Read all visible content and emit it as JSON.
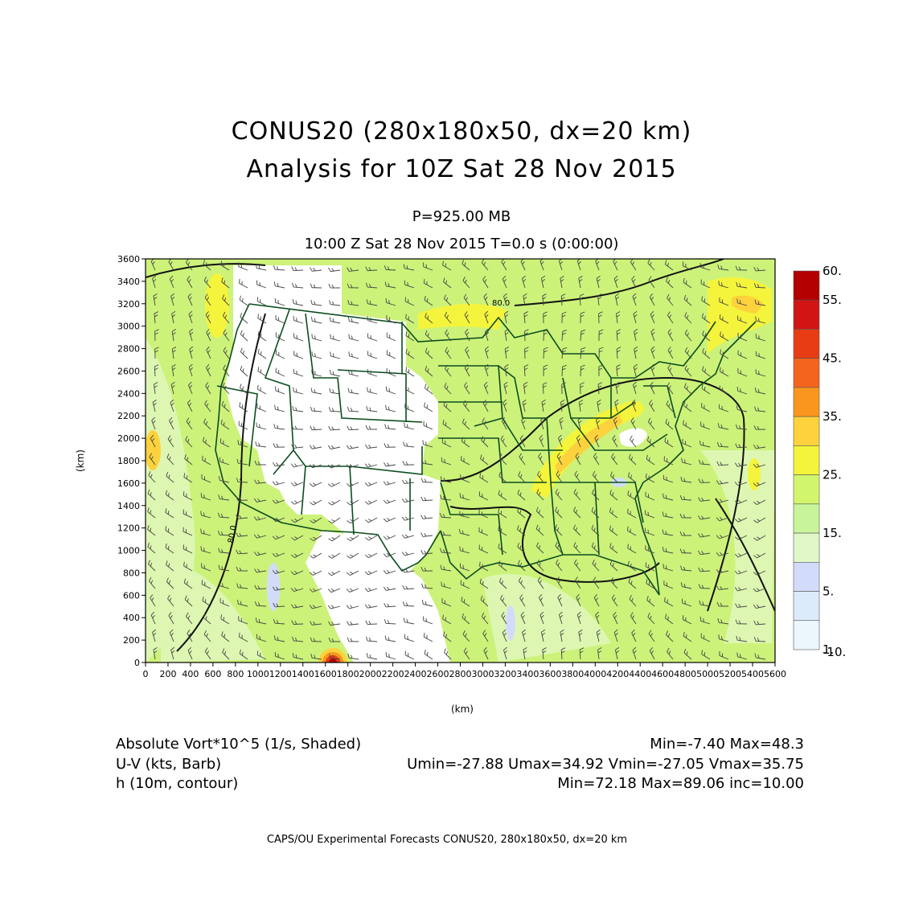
{
  "titles": {
    "main": "CONUS20 (280x180x50, dx=20 km)",
    "analysis": "Analysis for 10Z Sat 28 Nov 2015",
    "level": "P=925.00 MB",
    "time": "10:00 Z Sat 28 Nov 2015    T=0.0 s (0:00:00)"
  },
  "map": {
    "x_axis_label": "(km)",
    "y_axis_label": "(km)",
    "x_ticks": [
      "0",
      "200",
      "400",
      "600",
      "800",
      "1000",
      "1200",
      "1400",
      "1600",
      "1800",
      "2000",
      "2200",
      "2400",
      "2600",
      "2800",
      "3000",
      "3200",
      "3400",
      "3600",
      "3800",
      "4000",
      "4200",
      "4400",
      "4600",
      "4800",
      "5000",
      "5200",
      "5400",
      "5600"
    ],
    "y_ticks": [
      "0",
      "200",
      "400",
      "600",
      "800",
      "1000",
      "1200",
      "1400",
      "1600",
      "1800",
      "2000",
      "2200",
      "2400",
      "2600",
      "2800",
      "3000",
      "3200",
      "3400",
      "3600"
    ],
    "x_range_km": [
      0,
      5600
    ],
    "y_range_km": [
      0,
      3600
    ],
    "contour_labels": [
      "80.0",
      "80.0"
    ],
    "colors": {
      "base_field": "#ccf27a",
      "boundaries": "#0b4d1f",
      "land_masked": "#ffffff"
    }
  },
  "colorbar": {
    "labels": [
      "60.",
      "55.",
      "45.",
      "35.",
      "25.",
      "15.",
      "5.",
      "1.",
      "-10."
    ],
    "bins": [
      "#b40000",
      "#d21414",
      "#e83c14",
      "#f5641e",
      "#fa961e",
      "#fdd23c",
      "#f4f43c",
      "#d2f56e",
      "#c8f59a",
      "#e0f8c8",
      "#d2dcfa",
      "#dcebfb",
      "#ebf7fc"
    ]
  },
  "footer": {
    "line1_left": "Absolute Vort*10^5 (1/s, Shaded)",
    "line1_right": "Min=-7.40 Max=48.3",
    "line2_left": "U-V (kts, Barb)",
    "line2_right": "Umin=-27.88 Umax=34.92 Vmin=-27.05 Vmax=35.75",
    "line3_left": "h (10m, contour)",
    "line3_right": "Min=72.18 Max=89.06 inc=10.00",
    "credit": "CAPS/OU Experimental Forecasts   CONUS20, 280x180x50, dx=20 km"
  }
}
